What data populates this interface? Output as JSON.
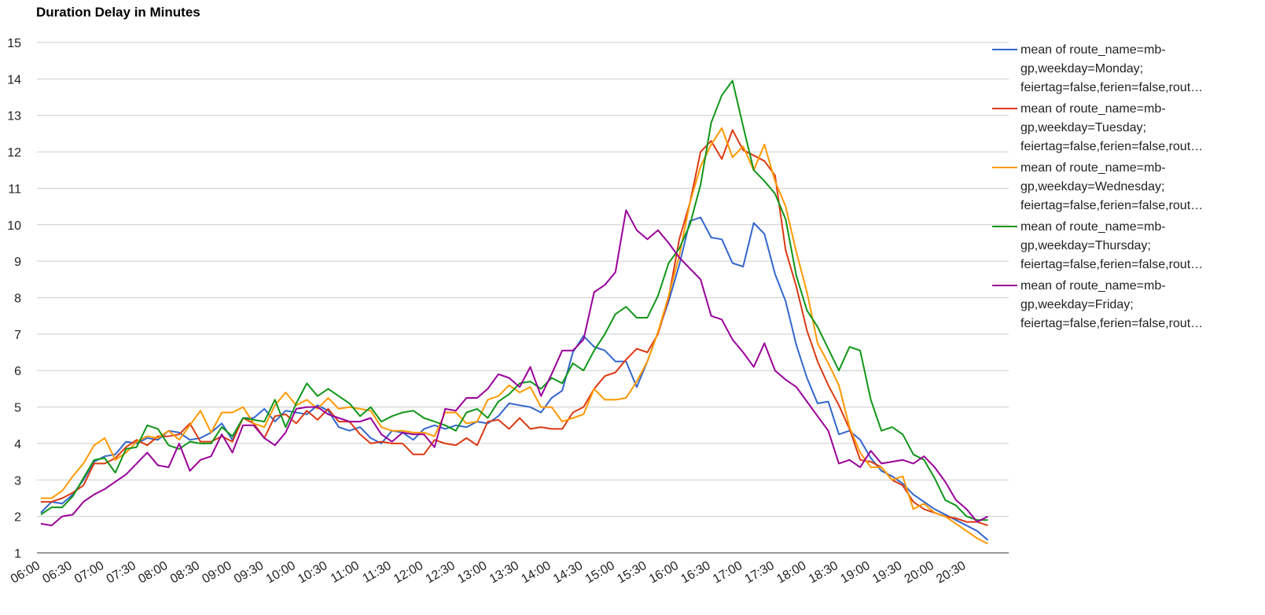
{
  "chart_data": {
    "type": "line",
    "title": "Duration Delay in Minutes",
    "xlabel": "",
    "ylabel": "",
    "ylim": [
      1,
      15
    ],
    "yticks": [
      "1",
      "2",
      "3",
      "4",
      "5",
      "6",
      "7",
      "8",
      "9",
      "10",
      "11",
      "12",
      "13",
      "14",
      "15"
    ],
    "x_tick_labels": [
      "06:00",
      "06:30",
      "07:00",
      "07:30",
      "08:00",
      "08:30",
      "09:00",
      "09:30",
      "10:00",
      "10:30",
      "11:00",
      "11:30",
      "12:00",
      "12:30",
      "13:00",
      "13:30",
      "14:00",
      "14:30",
      "15:00",
      "15:30",
      "16:00",
      "16:30",
      "17:00",
      "17:30",
      "18:00",
      "18:30",
      "19:00",
      "19:30",
      "20:00",
      "20:30"
    ],
    "x_step_minutes": 10,
    "grid": true,
    "legend_position": "right",
    "series": [
      {
        "name": "mean of route_name=mb-gp,weekday=Monday; feiertag=false,ferien=false,rout…",
        "legend_lines": [
          "mean of route_name=mb-",
          "gp,weekday=Monday;",
          "feiertag=false,ferien=false,rout…"
        ],
        "color": "#3366cc",
        "values": [
          2.1,
          2.4,
          2.35,
          2.6,
          3.0,
          3.5,
          3.65,
          3.7,
          4.05,
          4.0,
          4.15,
          4.1,
          4.35,
          4.3,
          4.1,
          4.15,
          4.3,
          4.55,
          4.1,
          4.7,
          4.7,
          4.95,
          4.6,
          4.9,
          4.85,
          4.8,
          5.05,
          4.9,
          4.45,
          4.35,
          4.45,
          4.15,
          4.0,
          4.35,
          4.3,
          4.1,
          4.4,
          4.5,
          4.4,
          4.5,
          4.45,
          4.6,
          4.55,
          4.75,
          5.1,
          5.05,
          5.0,
          4.85,
          5.25,
          5.45,
          6.5,
          6.95,
          6.65,
          6.55,
          6.25,
          6.25,
          5.55,
          6.25,
          7.05,
          7.9,
          8.9,
          10.1,
          10.2,
          9.65,
          9.6,
          8.95,
          8.85,
          10.05,
          9.75,
          8.65,
          7.9,
          6.7,
          5.8,
          5.1,
          5.15,
          4.25,
          4.35,
          4.1,
          3.6,
          3.25,
          3.1,
          2.9,
          2.6,
          2.4,
          2.2,
          2.05,
          1.9,
          1.75,
          1.6,
          1.35
        ]
      },
      {
        "name": "mean of route_name=mb-gp,weekday=Tuesday; feiertag=false,ferien=false,rout…",
        "legend_lines": [
          "mean of route_name=mb-",
          "gp,weekday=Tuesday;",
          "feiertag=false,ferien=false,rout…"
        ],
        "color": "#dc3912",
        "values": [
          2.4,
          2.4,
          2.5,
          2.65,
          2.85,
          3.45,
          3.45,
          3.6,
          3.9,
          4.1,
          3.95,
          4.2,
          4.2,
          4.25,
          4.55,
          4.05,
          4.05,
          4.2,
          4.05,
          4.7,
          4.55,
          4.15,
          4.75,
          4.8,
          4.55,
          4.9,
          4.65,
          4.95,
          4.6,
          4.6,
          4.25,
          4.0,
          4.05,
          4.0,
          4.0,
          3.7,
          3.7,
          4.1,
          4.0,
          3.95,
          4.15,
          3.95,
          4.6,
          4.65,
          4.4,
          4.7,
          4.4,
          4.45,
          4.4,
          4.4,
          4.85,
          5.0,
          5.5,
          5.85,
          5.95,
          6.3,
          6.6,
          6.5,
          7.0,
          8.0,
          9.6,
          10.6,
          12.0,
          12.3,
          11.8,
          12.6,
          12.05,
          11.9,
          11.75,
          11.35,
          9.3,
          8.3,
          7.1,
          6.25,
          5.6,
          5.05,
          4.4,
          3.55,
          3.5,
          3.35,
          3.0,
          2.85,
          2.4,
          2.2,
          2.1,
          2.0,
          1.95,
          1.85,
          1.85,
          1.75
        ]
      },
      {
        "name": "mean of route_name=mb-gp,weekday=Wednesday; feiertag=false,ferien=false,rout…",
        "legend_lines": [
          "mean of route_name=mb-",
          "gp,weekday=Wednesday;",
          "feiertag=false,ferien=false,rout…"
        ],
        "color": "#ff9900",
        "values": [
          2.5,
          2.5,
          2.7,
          3.1,
          3.45,
          3.95,
          4.15,
          3.55,
          3.75,
          4.05,
          4.2,
          4.15,
          4.35,
          4.1,
          4.5,
          4.9,
          4.3,
          4.85,
          4.85,
          5.0,
          4.55,
          4.45,
          5.05,
          5.4,
          5.05,
          5.2,
          4.95,
          5.25,
          4.95,
          5.0,
          4.95,
          4.9,
          4.45,
          4.35,
          4.35,
          4.3,
          4.3,
          4.2,
          4.85,
          4.85,
          4.55,
          4.6,
          5.2,
          5.3,
          5.6,
          5.4,
          5.55,
          5.0,
          5.0,
          4.6,
          4.7,
          4.8,
          5.5,
          5.2,
          5.2,
          5.25,
          5.7,
          6.25,
          7.05,
          8.05,
          9.15,
          10.6,
          11.6,
          12.2,
          12.65,
          11.85,
          12.15,
          11.5,
          12.2,
          11.2,
          10.5,
          9.25,
          8.15,
          6.75,
          6.2,
          5.6,
          4.45,
          3.75,
          3.35,
          3.35,
          3.0,
          3.1,
          2.2,
          2.35,
          2.1,
          2.0,
          1.8,
          1.6,
          1.4,
          1.25
        ]
      },
      {
        "name": "mean of route_name=mb-gp,weekday=Thursday; feiertag=false,ferien=false,rout…",
        "legend_lines": [
          "mean of route_name=mb-",
          "gp,weekday=Thursday;",
          "feiertag=false,ferien=false,rout…"
        ],
        "color": "#109618",
        "values": [
          2.05,
          2.25,
          2.25,
          2.55,
          3.05,
          3.55,
          3.6,
          3.2,
          3.85,
          3.9,
          4.5,
          4.4,
          3.95,
          3.85,
          4.05,
          4.0,
          4.0,
          4.45,
          4.2,
          4.7,
          4.65,
          4.6,
          5.2,
          4.45,
          5.1,
          5.65,
          5.3,
          5.5,
          5.3,
          5.1,
          4.75,
          5.0,
          4.6,
          4.75,
          4.85,
          4.9,
          4.7,
          4.6,
          4.5,
          4.35,
          4.85,
          4.95,
          4.7,
          5.15,
          5.35,
          5.65,
          5.7,
          5.5,
          5.8,
          5.65,
          6.2,
          6.0,
          6.55,
          7.0,
          7.55,
          7.75,
          7.45,
          7.45,
          8.05,
          8.95,
          9.35,
          10.0,
          11.1,
          12.8,
          13.55,
          13.95,
          12.7,
          11.5,
          11.2,
          10.85,
          10.15,
          8.6,
          7.65,
          7.2,
          6.6,
          6.0,
          6.65,
          6.55,
          5.2,
          4.35,
          4.45,
          4.25,
          3.7,
          3.55,
          3.05,
          2.45,
          2.3,
          2.0,
          1.9,
          1.9
        ]
      },
      {
        "name": "mean of route_name=mb-gp,weekday=Friday; feiertag=false,ferien=false,rout…",
        "legend_lines": [
          "mean of route_name=mb-",
          "gp,weekday=Friday;",
          "feiertag=false,ferien=false,rout…"
        ],
        "color": "#990099",
        "values": [
          1.8,
          1.75,
          2.0,
          2.05,
          2.4,
          2.6,
          2.75,
          2.95,
          3.15,
          3.45,
          3.75,
          3.4,
          3.35,
          4.0,
          3.25,
          3.55,
          3.65,
          4.25,
          3.75,
          4.5,
          4.5,
          4.15,
          3.95,
          4.3,
          4.95,
          5.0,
          5.0,
          4.8,
          4.7,
          4.6,
          4.6,
          4.7,
          4.25,
          4.05,
          4.3,
          4.25,
          4.25,
          3.9,
          4.95,
          4.9,
          5.25,
          5.25,
          5.5,
          5.9,
          5.8,
          5.55,
          6.1,
          5.3,
          5.9,
          6.55,
          6.55,
          6.85,
          8.15,
          8.35,
          8.7,
          10.4,
          9.85,
          9.6,
          9.85,
          9.5,
          9.1,
          8.8,
          8.5,
          7.5,
          7.4,
          6.85,
          6.5,
          6.1,
          6.75,
          6.0,
          5.75,
          5.55,
          5.15,
          4.75,
          4.35,
          3.45,
          3.55,
          3.35,
          3.8,
          3.45,
          3.5,
          3.55,
          3.45,
          3.65,
          3.35,
          2.95,
          2.45,
          2.2,
          1.85,
          2.0
        ]
      }
    ]
  }
}
